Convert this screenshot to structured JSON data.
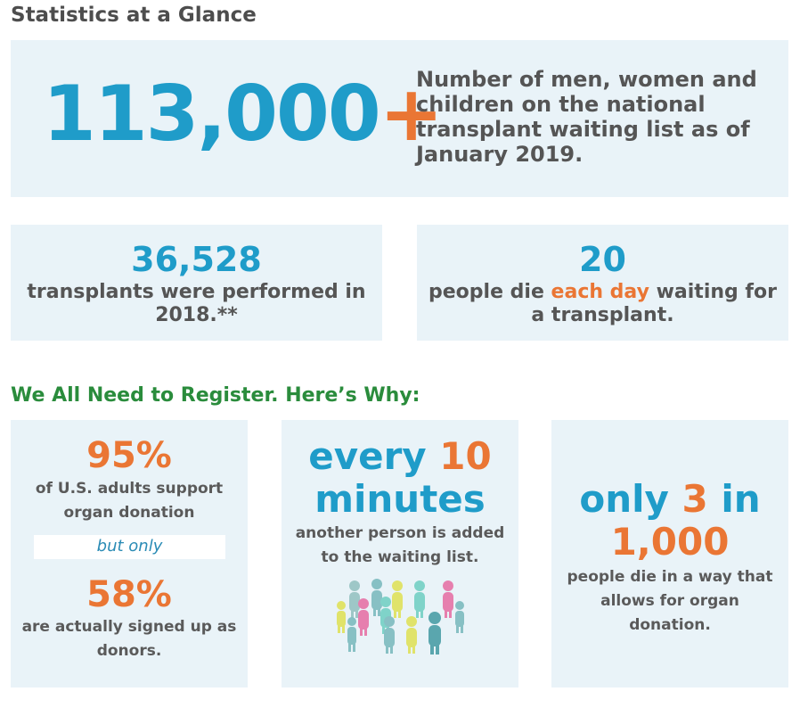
{
  "heading": "Statistics at a Glance",
  "top": {
    "number": "113,000",
    "plus": "+",
    "desc_lines": [
      "Number of men, women and",
      "children on the national",
      "transplant waiting list as of",
      "January 2019."
    ]
  },
  "mid_left": {
    "number": "36,528",
    "text_lines": [
      "transplants were performed in",
      "2018.**"
    ]
  },
  "mid_right": {
    "number": "20",
    "text_pre": "people die ",
    "text_highlight": "each day",
    "text_post": " waiting for",
    "text_line2": "a transplant."
  },
  "section_heading": "We All Need to Register. Here’s Why:",
  "box1": {
    "pct1": "95%",
    "text1_lines": [
      "of U.S. adults support",
      "organ donation"
    ],
    "but_only": "but only",
    "pct2": "58%",
    "text2_lines": [
      "are actually signed up as",
      "donors."
    ]
  },
  "box2": {
    "line1_pre": "every ",
    "line1_num": "10",
    "line2": "minutes",
    "text_lines": [
      "another person is added",
      "to the waiting list."
    ],
    "icon": "people-crowd-icon"
  },
  "box3": {
    "line1_pre": "only ",
    "line1_num": "3",
    "line1_post": " in",
    "line2": "1,000",
    "text_lines": [
      "people die in a way that",
      "allows for organ",
      "donation."
    ]
  },
  "colors": {
    "blue": "#1f9cc9",
    "orange": "#ea7634",
    "green": "#2a8c3c",
    "box_bg": "#e9f3f8",
    "text_grey": "#5a5a5a"
  }
}
